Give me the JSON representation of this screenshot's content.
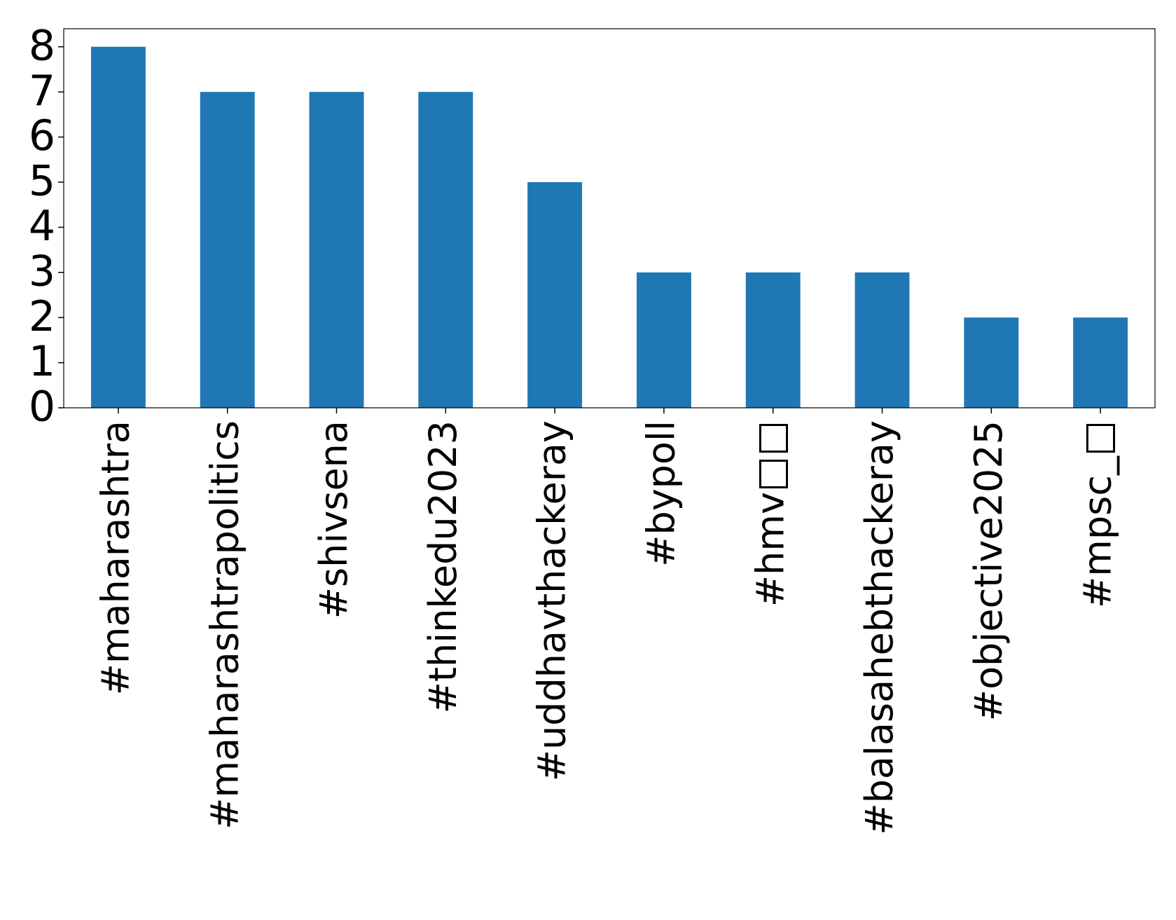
{
  "chart_data": {
    "type": "bar",
    "categories": [
      "#maharashtra",
      "#maharashtrapolitics",
      "#shivsena",
      "#thinkedu2023",
      "#uddhavthackeray",
      "#bypoll",
      "#hmv□□",
      "#balasahebthackeray",
      "#objective2025",
      "#mpsc_□"
    ],
    "values": [
      8,
      7,
      7,
      7,
      5,
      3,
      3,
      3,
      2,
      2
    ],
    "color": "#1f77b4",
    "ylim": [
      0,
      8.4
    ],
    "yticks": [
      0,
      1,
      2,
      3,
      4,
      5,
      6,
      7,
      8
    ]
  }
}
